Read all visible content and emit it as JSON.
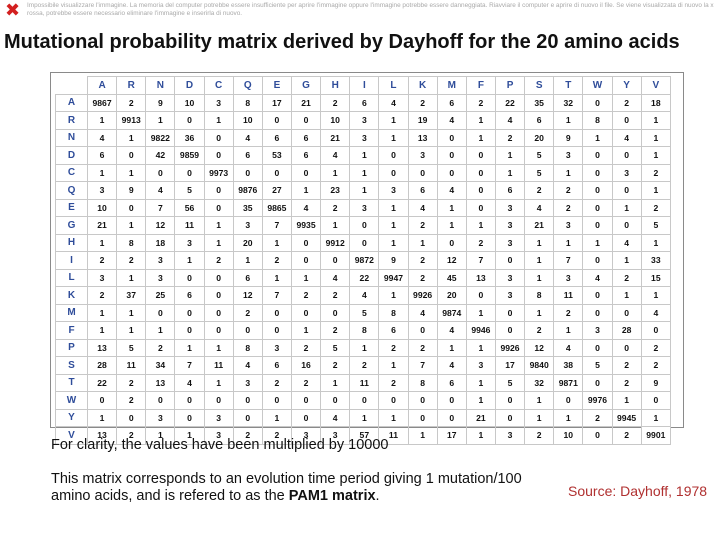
{
  "broken_image": {
    "icon": "broken-image-x-icon",
    "message": "Impossibile visualizzare l'immagine. La memoria del computer potrebbe essere insufficiente per aprire l'immagine oppure l'immagine potrebbe essere danneggiata. Riavviare il computer e aprire di nuovo il file. Se viene visualizzata di nuovo la x rossa, potrebbe essere necessario eliminare l'immagine e inserirla di nuovo."
  },
  "title": "Mutational probability matrix derived by Dayhoff for the 20 amino acids",
  "matrix": {
    "columns": [
      "A",
      "R",
      "N",
      "D",
      "C",
      "Q",
      "E",
      "G",
      "H",
      "I",
      "L",
      "K",
      "M",
      "F",
      "P",
      "S",
      "T",
      "W",
      "Y",
      "V"
    ],
    "rows": [
      {
        "label": "A",
        "values": [
          "9867",
          "2",
          "9",
          "10",
          "3",
          "8",
          "17",
          "21",
          "2",
          "6",
          "4",
          "2",
          "6",
          "2",
          "22",
          "35",
          "32",
          "0",
          "2",
          "18"
        ]
      },
      {
        "label": "R",
        "values": [
          "1",
          "9913",
          "1",
          "0",
          "1",
          "10",
          "0",
          "0",
          "10",
          "3",
          "1",
          "19",
          "4",
          "1",
          "4",
          "6",
          "1",
          "8",
          "0",
          "1"
        ]
      },
      {
        "label": "N",
        "values": [
          "4",
          "1",
          "9822",
          "36",
          "0",
          "4",
          "6",
          "6",
          "21",
          "3",
          "1",
          "13",
          "0",
          "1",
          "2",
          "20",
          "9",
          "1",
          "4",
          "1"
        ]
      },
      {
        "label": "D",
        "values": [
          "6",
          "0",
          "42",
          "9859",
          "0",
          "6",
          "53",
          "6",
          "4",
          "1",
          "0",
          "3",
          "0",
          "0",
          "1",
          "5",
          "3",
          "0",
          "0",
          "1"
        ]
      },
      {
        "label": "C",
        "values": [
          "1",
          "1",
          "0",
          "0",
          "9973",
          "0",
          "0",
          "0",
          "1",
          "1",
          "0",
          "0",
          "0",
          "0",
          "1",
          "5",
          "1",
          "0",
          "3",
          "2"
        ]
      },
      {
        "label": "Q",
        "values": [
          "3",
          "9",
          "4",
          "5",
          "0",
          "9876",
          "27",
          "1",
          "23",
          "1",
          "3",
          "6",
          "4",
          "0",
          "6",
          "2",
          "2",
          "0",
          "0",
          "1"
        ]
      },
      {
        "label": "E",
        "values": [
          "10",
          "0",
          "7",
          "56",
          "0",
          "35",
          "9865",
          "4",
          "2",
          "3",
          "1",
          "4",
          "1",
          "0",
          "3",
          "4",
          "2",
          "0",
          "1",
          "2"
        ]
      },
      {
        "label": "G",
        "values": [
          "21",
          "1",
          "12",
          "11",
          "1",
          "3",
          "7",
          "9935",
          "1",
          "0",
          "1",
          "2",
          "1",
          "1",
          "3",
          "21",
          "3",
          "0",
          "0",
          "5"
        ]
      },
      {
        "label": "H",
        "values": [
          "1",
          "8",
          "18",
          "3",
          "1",
          "20",
          "1",
          "0",
          "9912",
          "0",
          "1",
          "1",
          "0",
          "2",
          "3",
          "1",
          "1",
          "1",
          "4",
          "1"
        ]
      },
      {
        "label": "I",
        "values": [
          "2",
          "2",
          "3",
          "1",
          "2",
          "1",
          "2",
          "0",
          "0",
          "9872",
          "9",
          "2",
          "12",
          "7",
          "0",
          "1",
          "7",
          "0",
          "1",
          "33"
        ]
      },
      {
        "label": "L",
        "values": [
          "3",
          "1",
          "3",
          "0",
          "0",
          "6",
          "1",
          "1",
          "4",
          "22",
          "9947",
          "2",
          "45",
          "13",
          "3",
          "1",
          "3",
          "4",
          "2",
          "15"
        ]
      },
      {
        "label": "K",
        "values": [
          "2",
          "37",
          "25",
          "6",
          "0",
          "12",
          "7",
          "2",
          "2",
          "4",
          "1",
          "9926",
          "20",
          "0",
          "3",
          "8",
          "11",
          "0",
          "1",
          "1"
        ]
      },
      {
        "label": "M",
        "values": [
          "1",
          "1",
          "0",
          "0",
          "0",
          "2",
          "0",
          "0",
          "0",
          "5",
          "8",
          "4",
          "9874",
          "1",
          "0",
          "1",
          "2",
          "0",
          "0",
          "4"
        ]
      },
      {
        "label": "F",
        "values": [
          "1",
          "1",
          "1",
          "0",
          "0",
          "0",
          "0",
          "1",
          "2",
          "8",
          "6",
          "0",
          "4",
          "9946",
          "0",
          "2",
          "1",
          "3",
          "28",
          "0"
        ]
      },
      {
        "label": "P",
        "values": [
          "13",
          "5",
          "2",
          "1",
          "1",
          "8",
          "3",
          "2",
          "5",
          "1",
          "2",
          "2",
          "1",
          "1",
          "9926",
          "12",
          "4",
          "0",
          "0",
          "2"
        ]
      },
      {
        "label": "S",
        "values": [
          "28",
          "11",
          "34",
          "7",
          "11",
          "4",
          "6",
          "16",
          "2",
          "2",
          "1",
          "7",
          "4",
          "3",
          "17",
          "9840",
          "38",
          "5",
          "2",
          "2"
        ]
      },
      {
        "label": "T",
        "values": [
          "22",
          "2",
          "13",
          "4",
          "1",
          "3",
          "2",
          "2",
          "1",
          "11",
          "2",
          "8",
          "6",
          "1",
          "5",
          "32",
          "9871",
          "0",
          "2",
          "9"
        ]
      },
      {
        "label": "W",
        "values": [
          "0",
          "2",
          "0",
          "0",
          "0",
          "0",
          "0",
          "0",
          "0",
          "0",
          "0",
          "0",
          "0",
          "1",
          "0",
          "1",
          "0",
          "9976",
          "1",
          "0"
        ]
      },
      {
        "label": "Y",
        "values": [
          "1",
          "0",
          "3",
          "0",
          "3",
          "0",
          "1",
          "0",
          "4",
          "1",
          "1",
          "0",
          "0",
          "21",
          "0",
          "1",
          "1",
          "2",
          "9945",
          "1"
        ]
      },
      {
        "label": "V",
        "values": [
          "13",
          "2",
          "1",
          "1",
          "3",
          "2",
          "2",
          "3",
          "3",
          "57",
          "11",
          "1",
          "17",
          "1",
          "3",
          "2",
          "10",
          "0",
          "2",
          "9901"
        ]
      }
    ]
  },
  "note": "For clarity, the values have been multiplied by 10000",
  "description_part1": "This matrix corresponds to an evolution time period giving 1 mutation/100 amino acids, and is refered to as the ",
  "description_bold": "PAM1 matrix",
  "description_end": ".",
  "source": "Source: Dayhoff, 1978"
}
